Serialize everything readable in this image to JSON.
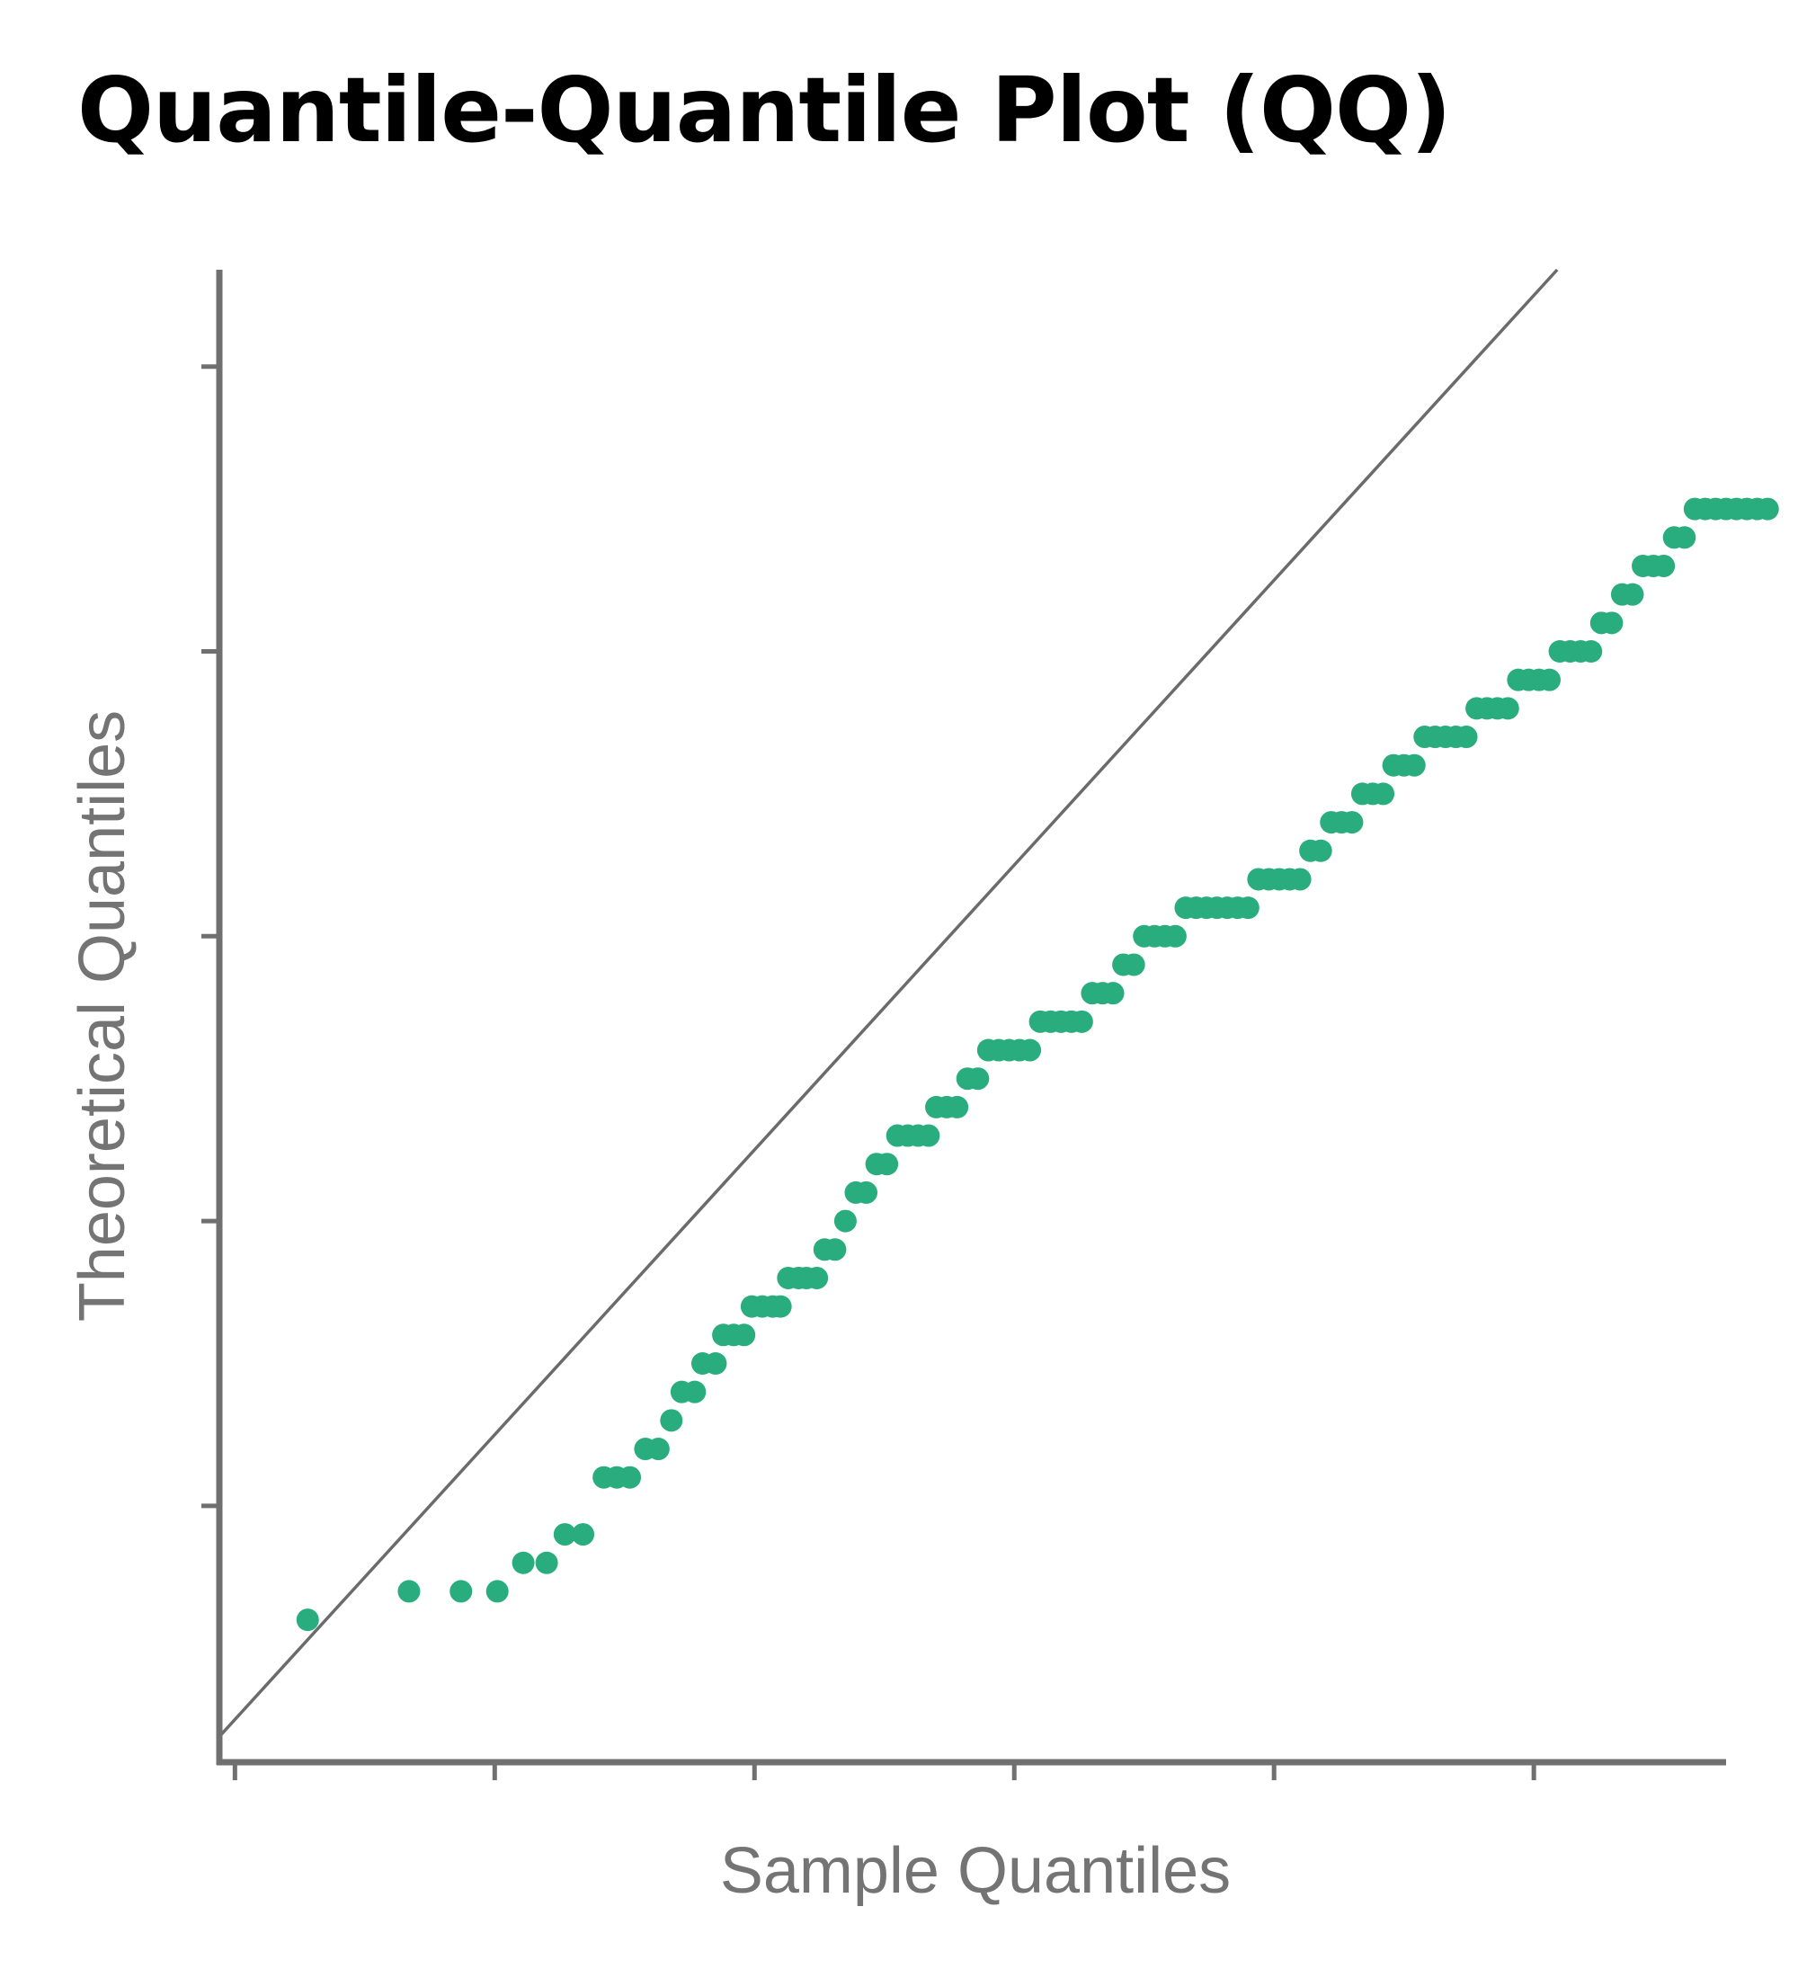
{
  "title": "Quantile-Quantile Plot (QQ)",
  "chart_data": {
    "type": "scatter",
    "title": "Quantile-Quantile Plot (QQ)",
    "xlabel": "Sample Quantiles",
    "ylabel": "Theoretical Quantiles",
    "xlim": [
      -0.06,
      5.74
    ],
    "ylim": [
      -0.15,
      5.09
    ],
    "x_tick_positions": [
      0,
      1,
      2,
      3,
      4,
      5
    ],
    "y_tick_positions": [
      0.75,
      1.75,
      2.75,
      3.75,
      4.75
    ],
    "show_tick_labels": false,
    "grid": false,
    "reference_line": {
      "slope": 1,
      "intercept": 0,
      "color": "#6b6b6b"
    },
    "point_color": "#2aad7e",
    "axis_color": "#707070",
    "series": [
      {
        "points": [
          [
            0.28,
            0.35
          ],
          [
            0.67,
            0.45
          ],
          [
            0.87,
            0.45
          ],
          [
            1.01,
            0.45
          ],
          [
            1.11,
            0.55
          ],
          [
            1.2,
            0.55
          ],
          [
            1.27,
            0.65
          ],
          [
            1.34,
            0.65
          ],
          [
            1.42,
            0.85
          ],
          [
            1.47,
            0.85
          ],
          [
            1.52,
            0.85
          ],
          [
            1.58,
            0.95
          ],
          [
            1.63,
            0.95
          ],
          [
            1.68,
            1.05
          ],
          [
            1.72,
            1.15
          ],
          [
            1.77,
            1.15
          ],
          [
            1.8,
            1.25
          ],
          [
            1.85,
            1.25
          ],
          [
            1.88,
            1.35
          ],
          [
            1.92,
            1.35
          ],
          [
            1.96,
            1.35
          ],
          [
            1.99,
            1.45
          ],
          [
            2.03,
            1.45
          ],
          [
            2.07,
            1.45
          ],
          [
            2.1,
            1.45
          ],
          [
            2.13,
            1.55
          ],
          [
            2.17,
            1.55
          ],
          [
            2.2,
            1.55
          ],
          [
            2.24,
            1.55
          ],
          [
            2.27,
            1.65
          ],
          [
            2.31,
            1.65
          ],
          [
            2.35,
            1.75
          ],
          [
            2.39,
            1.85
          ],
          [
            2.43,
            1.85
          ],
          [
            2.47,
            1.95
          ],
          [
            2.51,
            1.95
          ],
          [
            2.55,
            2.05
          ],
          [
            2.59,
            2.05
          ],
          [
            2.63,
            2.05
          ],
          [
            2.67,
            2.05
          ],
          [
            2.7,
            2.15
          ],
          [
            2.74,
            2.15
          ],
          [
            2.78,
            2.15
          ],
          [
            2.82,
            2.25
          ],
          [
            2.86,
            2.25
          ],
          [
            2.9,
            2.35
          ],
          [
            2.94,
            2.35
          ],
          [
            2.98,
            2.35
          ],
          [
            3.02,
            2.35
          ],
          [
            3.06,
            2.35
          ],
          [
            3.1,
            2.45
          ],
          [
            3.14,
            2.45
          ],
          [
            3.18,
            2.45
          ],
          [
            3.22,
            2.45
          ],
          [
            3.26,
            2.45
          ],
          [
            3.3,
            2.55
          ],
          [
            3.34,
            2.55
          ],
          [
            3.38,
            2.55
          ],
          [
            3.42,
            2.65
          ],
          [
            3.46,
            2.65
          ],
          [
            3.5,
            2.75
          ],
          [
            3.54,
            2.75
          ],
          [
            3.58,
            2.75
          ],
          [
            3.62,
            2.75
          ],
          [
            3.66,
            2.85
          ],
          [
            3.7,
            2.85
          ],
          [
            3.74,
            2.85
          ],
          [
            3.78,
            2.85
          ],
          [
            3.82,
            2.85
          ],
          [
            3.86,
            2.85
          ],
          [
            3.9,
            2.85
          ],
          [
            3.94,
            2.95
          ],
          [
            3.98,
            2.95
          ],
          [
            4.02,
            2.95
          ],
          [
            4.06,
            2.95
          ],
          [
            4.1,
            2.95
          ],
          [
            4.14,
            3.05
          ],
          [
            4.18,
            3.05
          ],
          [
            4.22,
            3.15
          ],
          [
            4.26,
            3.15
          ],
          [
            4.3,
            3.15
          ],
          [
            4.34,
            3.25
          ],
          [
            4.38,
            3.25
          ],
          [
            4.42,
            3.25
          ],
          [
            4.46,
            3.35
          ],
          [
            4.5,
            3.35
          ],
          [
            4.54,
            3.35
          ],
          [
            4.58,
            3.45
          ],
          [
            4.62,
            3.45
          ],
          [
            4.66,
            3.45
          ],
          [
            4.7,
            3.45
          ],
          [
            4.74,
            3.45
          ],
          [
            4.78,
            3.55
          ],
          [
            4.82,
            3.55
          ],
          [
            4.86,
            3.55
          ],
          [
            4.9,
            3.55
          ],
          [
            4.94,
            3.65
          ],
          [
            4.98,
            3.65
          ],
          [
            5.02,
            3.65
          ],
          [
            5.06,
            3.65
          ],
          [
            5.1,
            3.75
          ],
          [
            5.14,
            3.75
          ],
          [
            5.18,
            3.75
          ],
          [
            5.22,
            3.75
          ],
          [
            5.26,
            3.85
          ],
          [
            5.3,
            3.85
          ],
          [
            5.34,
            3.95
          ],
          [
            5.38,
            3.95
          ],
          [
            5.42,
            4.05
          ],
          [
            5.46,
            4.05
          ],
          [
            5.5,
            4.05
          ],
          [
            5.54,
            4.15
          ],
          [
            5.58,
            4.15
          ],
          [
            5.62,
            4.25
          ],
          [
            5.66,
            4.25
          ],
          [
            5.7,
            4.25
          ],
          [
            5.74,
            4.25
          ],
          [
            5.78,
            4.25
          ],
          [
            5.82,
            4.25
          ],
          [
            5.86,
            4.25
          ],
          [
            5.9,
            4.25
          ]
        ]
      }
    ]
  }
}
